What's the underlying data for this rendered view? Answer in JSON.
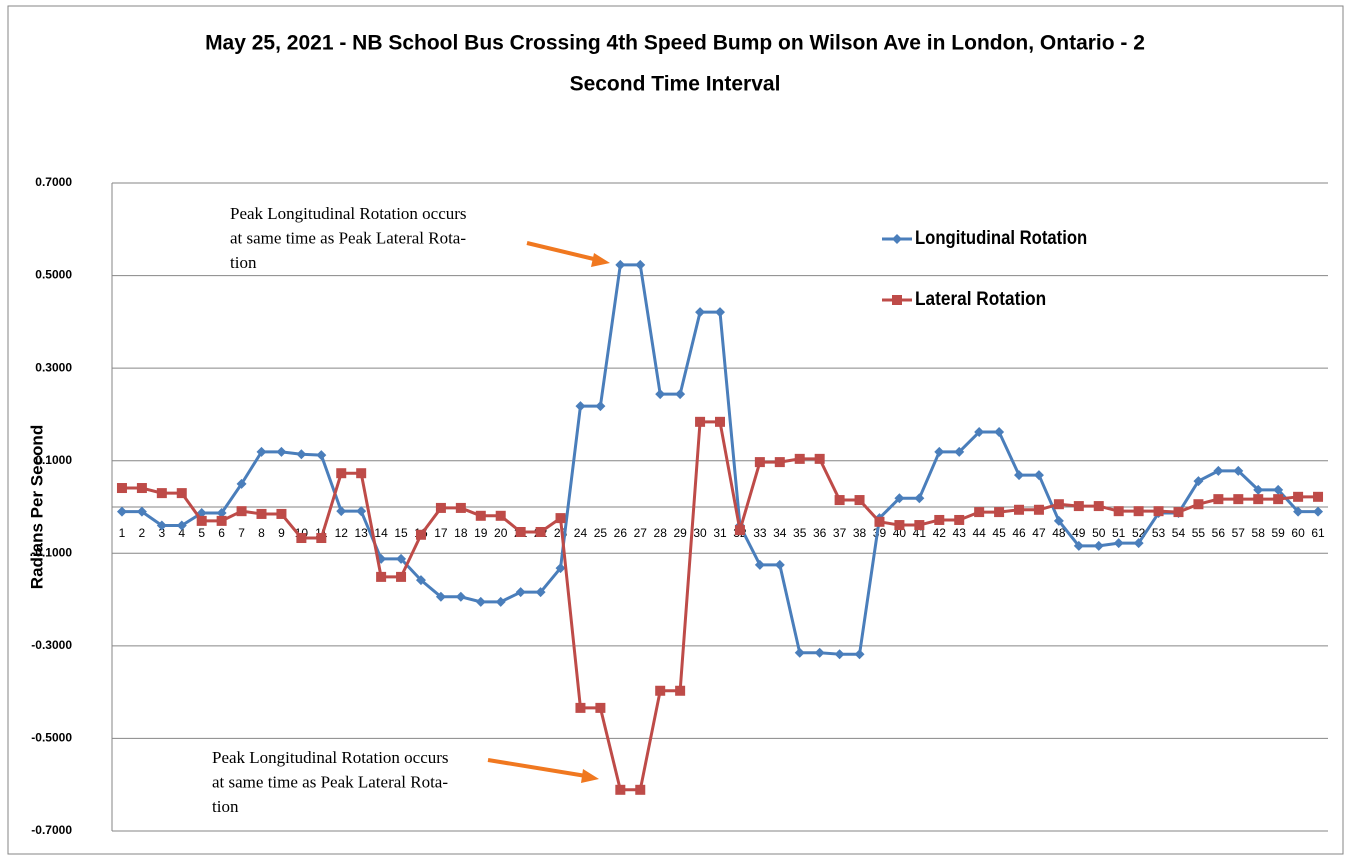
{
  "chart_data": {
    "type": "line",
    "title": [
      "May 25, 2021 - NB School Bus Crossing 4th Speed Bump on Wilson Ave in London, Ontario - 2",
      "Second Time Interval"
    ],
    "y_label": "Radians Per Second",
    "categories": [
      1,
      2,
      3,
      4,
      5,
      6,
      7,
      8,
      9,
      10,
      11,
      12,
      13,
      14,
      15,
      16,
      17,
      18,
      19,
      20,
      21,
      22,
      23,
      24,
      25,
      26,
      27,
      28,
      29,
      30,
      31,
      32,
      33,
      34,
      35,
      36,
      37,
      38,
      39,
      40,
      41,
      42,
      43,
      44,
      45,
      46,
      47,
      48,
      49,
      50,
      51,
      52,
      53,
      54,
      55,
      56,
      57,
      58,
      59,
      60,
      61
    ],
    "series": [
      {
        "name": "Longitudinal Rotation",
        "color": "#4a7ebb",
        "marker": "diamond",
        "values": [
          -0.01,
          -0.01,
          -0.04,
          -0.04,
          -0.013,
          -0.013,
          0.05,
          0.119,
          0.119,
          0.114,
          0.112,
          -0.009,
          -0.009,
          -0.112,
          -0.112,
          -0.158,
          -0.194,
          -0.194,
          -0.205,
          -0.205,
          -0.184,
          -0.184,
          -0.132,
          0.218,
          0.218,
          0.523,
          0.523,
          0.244,
          0.244,
          0.421,
          0.421,
          -0.04,
          -0.125,
          -0.125,
          -0.315,
          -0.315,
          -0.318,
          -0.318,
          -0.024,
          0.019,
          0.019,
          0.119,
          0.119,
          0.162,
          0.162,
          0.069,
          0.069,
          -0.03,
          -0.084,
          -0.084,
          -0.078,
          -0.078,
          -0.013,
          -0.013,
          0.056,
          0.078,
          0.078,
          0.037,
          0.037,
          -0.01,
          -0.01
        ]
      },
      {
        "name": "Lateral Rotation",
        "color": "#be4b48",
        "marker": "square",
        "values": [
          0.041,
          0.041,
          0.03,
          0.03,
          -0.03,
          -0.03,
          -0.009,
          -0.015,
          -0.015,
          -0.067,
          -0.067,
          0.073,
          0.073,
          -0.151,
          -0.151,
          -0.06,
          -0.002,
          -0.002,
          -0.019,
          -0.019,
          -0.054,
          -0.054,
          -0.024,
          -0.434,
          -0.434,
          -0.611,
          -0.611,
          -0.397,
          -0.397,
          0.184,
          0.184,
          -0.05,
          0.097,
          0.097,
          0.104,
          0.104,
          0.015,
          0.015,
          -0.032,
          -0.039,
          -0.039,
          -0.028,
          -0.028,
          -0.011,
          -0.011,
          -0.006,
          -0.006,
          0.006,
          0.002,
          0.002,
          -0.009,
          -0.009,
          -0.009,
          -0.011,
          0.006,
          0.017,
          0.017,
          0.017,
          0.017,
          0.022,
          0.022
        ]
      }
    ],
    "ylim": [
      -0.7,
      0.7
    ],
    "yticks": [
      {
        "value": -0.7,
        "label": "-0.7000"
      },
      {
        "value": -0.5,
        "label": "-0.5000"
      },
      {
        "value": -0.3,
        "label": "-0.3000"
      },
      {
        "value": -0.1,
        "label": "-0.1000"
      },
      {
        "value": 0.1,
        "label": "0.1000"
      },
      {
        "value": 0.3,
        "label": "0.3000"
      },
      {
        "value": 0.5,
        "label": "0.5000"
      },
      {
        "value": 0.7,
        "label": "0.7000"
      }
    ],
    "grid": true,
    "legend_position": "upper-right",
    "annotations": [
      {
        "lines": [
          "Peak Longitudinal Rotation occurs",
          "at same time as Peak Lateral Rota-",
          "tion"
        ]
      },
      {
        "lines": [
          "Peak Longitudinal Rotation occurs",
          "at same time as Peak Lateral Rota-",
          "tion"
        ]
      }
    ]
  }
}
